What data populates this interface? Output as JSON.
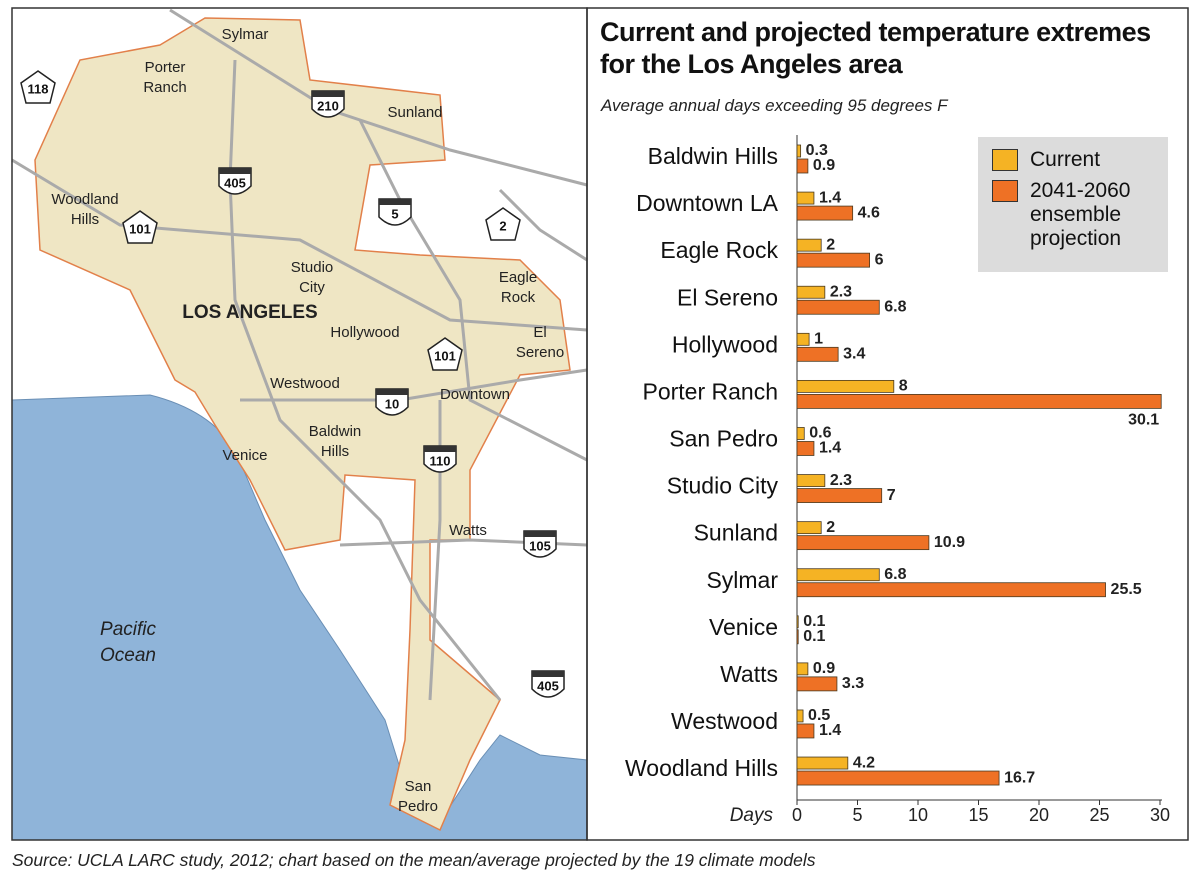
{
  "chart_data": {
    "type": "bar",
    "orientation": "horizontal",
    "title": "Current and projected temperature extremes for the Los Angeles area",
    "subtitle": "Average annual days exceeding 95 degrees F",
    "xlabel": "Days",
    "categories": [
      "Baldwin Hills",
      "Downtown LA",
      "Eagle Rock",
      "El Sereno",
      "Hollywood",
      "Porter Ranch",
      "San Pedro",
      "Studio City",
      "Sunland",
      "Sylmar",
      "Venice",
      "Watts",
      "Westwood",
      "Woodland Hills"
    ],
    "series": [
      {
        "name": "Current",
        "color": "#f5b324",
        "values": [
          0.3,
          1.4,
          2,
          2.3,
          1,
          8,
          0.6,
          2.3,
          2,
          6.8,
          0.1,
          0.9,
          0.5,
          4.2
        ]
      },
      {
        "name": "2041-2060 ensemble projection",
        "color": "#ee7125",
        "values": [
          0.9,
          4.6,
          6,
          6.8,
          3.4,
          30.1,
          1.4,
          7,
          10.9,
          25.5,
          0.1,
          3.3,
          1.4,
          16.7
        ]
      }
    ],
    "xlim": [
      0,
      30
    ],
    "xticks": [
      0,
      5,
      10,
      15,
      20,
      25,
      30
    ],
    "legend": "top-right"
  },
  "map": {
    "labels": [
      "Sylmar",
      "Porter",
      "Ranch",
      "Sunland",
      "Woodland",
      "Hills",
      "Studio",
      "City",
      "LOS ANGELES",
      "Hollywood",
      "Eagle",
      "Rock",
      "El",
      "Sereno",
      "Westwood",
      "Downtown",
      "Baldwin",
      "Hills",
      "Venice",
      "Watts",
      "Pacific",
      "Ocean",
      "San",
      "Pedro"
    ],
    "shields": [
      "118",
      "210",
      "405",
      "101",
      "5",
      "2",
      "101",
      "10",
      "110",
      "105",
      "405"
    ]
  },
  "source": "Source: UCLA LARC study, 2012; chart based on the mean/average projected by the 19 climate models"
}
